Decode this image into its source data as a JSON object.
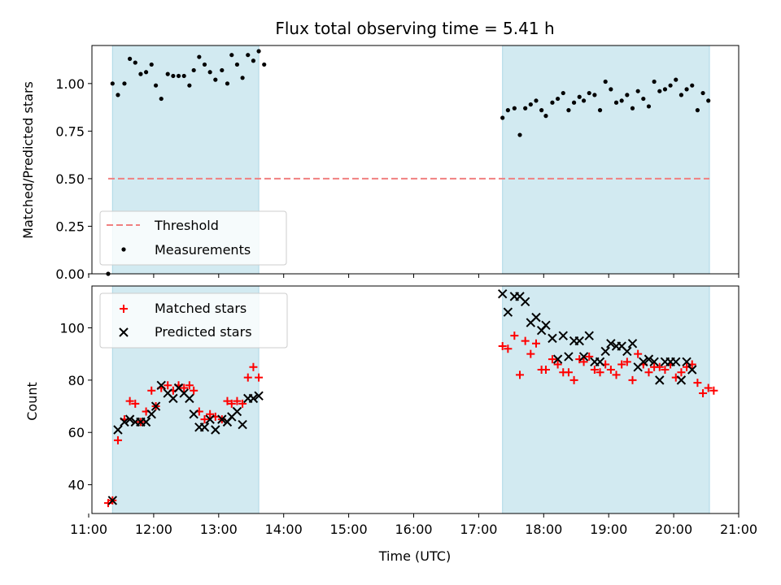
{
  "chart_data": [
    {
      "type": "scatter",
      "title": "Flux total observing time = 5.41 h",
      "xlabel": "",
      "ylabel": "Matched/Predicted stars",
      "xlim": [
        "11:03",
        "21:00"
      ],
      "ylim": [
        0,
        1.2
      ],
      "yticks": [
        "0.00",
        "0.25",
        "0.50",
        "0.75",
        "1.00"
      ],
      "shaded_intervals": [
        [
          "11:22",
          "13:37"
        ],
        [
          "17:22",
          "20:33"
        ]
      ],
      "shade_color": "#add8e6",
      "threshold": {
        "name": "Threshold",
        "value": 0.5,
        "x_range": [
          "11:18",
          "20:33"
        ],
        "color": "#f08080",
        "style": "dashed"
      },
      "legend": {
        "placement": "lower-left",
        "entries": [
          "Threshold",
          "Measurements"
        ]
      },
      "series": [
        {
          "name": "Measurements",
          "marker": "dot",
          "color": "#000000",
          "points": [
            [
              "11:18",
              0.0
            ],
            [
              "11:22",
              1.0
            ],
            [
              "11:27",
              0.94
            ],
            [
              "11:33",
              1.0
            ],
            [
              "11:38",
              1.13
            ],
            [
              "11:43",
              1.11
            ],
            [
              "11:48",
              1.05
            ],
            [
              "11:53",
              1.06
            ],
            [
              "11:58",
              1.1
            ],
            [
              "12:02",
              0.99
            ],
            [
              "12:07",
              0.92
            ],
            [
              "12:13",
              1.05
            ],
            [
              "12:18",
              1.04
            ],
            [
              "12:23",
              1.04
            ],
            [
              "12:28",
              1.04
            ],
            [
              "12:33",
              0.99
            ],
            [
              "12:37",
              1.07
            ],
            [
              "12:42",
              1.14
            ],
            [
              "12:47",
              1.1
            ],
            [
              "12:52",
              1.06
            ],
            [
              "12:57",
              1.02
            ],
            [
              "13:03",
              1.07
            ],
            [
              "13:08",
              1.0
            ],
            [
              "13:12",
              1.15
            ],
            [
              "13:17",
              1.1
            ],
            [
              "13:22",
              1.03
            ],
            [
              "13:27",
              1.15
            ],
            [
              "13:32",
              1.12
            ],
            [
              "13:37",
              1.17
            ],
            [
              "13:42",
              1.1
            ],
            [
              "17:22",
              0.82
            ],
            [
              "17:27",
              0.86
            ],
            [
              "17:33",
              0.87
            ],
            [
              "17:38",
              0.73
            ],
            [
              "17:43",
              0.87
            ],
            [
              "17:48",
              0.89
            ],
            [
              "17:53",
              0.91
            ],
            [
              "17:58",
              0.86
            ],
            [
              "18:02",
              0.83
            ],
            [
              "18:08",
              0.9
            ],
            [
              "18:13",
              0.92
            ],
            [
              "18:18",
              0.95
            ],
            [
              "18:23",
              0.86
            ],
            [
              "18:28",
              0.9
            ],
            [
              "18:33",
              0.93
            ],
            [
              "18:37",
              0.91
            ],
            [
              "18:42",
              0.95
            ],
            [
              "18:47",
              0.94
            ],
            [
              "18:52",
              0.86
            ],
            [
              "18:57",
              1.01
            ],
            [
              "19:02",
              0.97
            ],
            [
              "19:07",
              0.9
            ],
            [
              "19:12",
              0.91
            ],
            [
              "19:17",
              0.94
            ],
            [
              "19:22",
              0.87
            ],
            [
              "19:27",
              0.96
            ],
            [
              "19:32",
              0.92
            ],
            [
              "19:37",
              0.88
            ],
            [
              "19:42",
              1.01
            ],
            [
              "19:47",
              0.96
            ],
            [
              "19:52",
              0.97
            ],
            [
              "19:57",
              0.99
            ],
            [
              "20:02",
              1.02
            ],
            [
              "20:07",
              0.94
            ],
            [
              "20:12",
              0.97
            ],
            [
              "20:17",
              0.99
            ],
            [
              "20:22",
              0.86
            ],
            [
              "20:27",
              0.95
            ],
            [
              "20:32",
              0.91
            ]
          ]
        }
      ]
    },
    {
      "type": "scatter",
      "title": "",
      "xlabel": "Time (UTC)",
      "ylabel": "Count",
      "xlim": [
        "11:03",
        "21:00"
      ],
      "xticks": [
        "11:00",
        "12:00",
        "13:00",
        "14:00",
        "15:00",
        "16:00",
        "17:00",
        "18:00",
        "19:00",
        "20:00",
        "21:00"
      ],
      "ylim": [
        29,
        116
      ],
      "yticks": [
        "40",
        "60",
        "80",
        "100"
      ],
      "shaded_intervals": [
        [
          "11:22",
          "13:37"
        ],
        [
          "17:22",
          "20:33"
        ]
      ],
      "shade_color": "#add8e6",
      "legend": {
        "placement": "upper-left",
        "entries": [
          "Matched stars",
          "Predicted stars"
        ]
      },
      "series": [
        {
          "name": "Matched stars",
          "marker": "plus",
          "color": "#ff0000",
          "points": [
            [
              "11:18",
              33
            ],
            [
              "11:22",
              34
            ],
            [
              "11:27",
              57
            ],
            [
              "11:33",
              65
            ],
            [
              "11:38",
              72
            ],
            [
              "11:43",
              71
            ],
            [
              "11:48",
              64
            ],
            [
              "11:53",
              68
            ],
            [
              "11:58",
              76
            ],
            [
              "12:02",
              70
            ],
            [
              "12:07",
              77
            ],
            [
              "12:13",
              78
            ],
            [
              "12:18",
              76
            ],
            [
              "12:23",
              78
            ],
            [
              "12:28",
              77
            ],
            [
              "12:33",
              78
            ],
            [
              "12:37",
              76
            ],
            [
              "12:42",
              68
            ],
            [
              "12:47",
              65
            ],
            [
              "12:52",
              67
            ],
            [
              "12:57",
              66
            ],
            [
              "13:03",
              65
            ],
            [
              "13:08",
              72
            ],
            [
              "13:12",
              71
            ],
            [
              "13:17",
              72
            ],
            [
              "13:22",
              71
            ],
            [
              "13:27",
              81
            ],
            [
              "13:32",
              85
            ],
            [
              "13:37",
              81
            ],
            [
              "17:22",
              93
            ],
            [
              "17:27",
              92
            ],
            [
              "17:33",
              97
            ],
            [
              "17:38",
              82
            ],
            [
              "17:43",
              95
            ],
            [
              "17:48",
              90
            ],
            [
              "17:53",
              94
            ],
            [
              "17:58",
              84
            ],
            [
              "18:02",
              84
            ],
            [
              "18:08",
              88
            ],
            [
              "18:13",
              86
            ],
            [
              "18:18",
              83
            ],
            [
              "18:23",
              83
            ],
            [
              "18:28",
              80
            ],
            [
              "18:33",
              88
            ],
            [
              "18:37",
              87
            ],
            [
              "18:42",
              89
            ],
            [
              "18:47",
              84
            ],
            [
              "18:52",
              83
            ],
            [
              "18:57",
              86
            ],
            [
              "19:02",
              84
            ],
            [
              "19:07",
              82
            ],
            [
              "19:12",
              86
            ],
            [
              "19:17",
              87
            ],
            [
              "19:22",
              80
            ],
            [
              "19:27",
              90
            ],
            [
              "19:32",
              86
            ],
            [
              "19:37",
              83
            ],
            [
              "19:42",
              85
            ],
            [
              "19:47",
              85
            ],
            [
              "19:52",
              84
            ],
            [
              "19:57",
              86
            ],
            [
              "20:02",
              81
            ],
            [
              "20:07",
              83
            ],
            [
              "20:12",
              85
            ],
            [
              "20:17",
              86
            ],
            [
              "20:22",
              79
            ],
            [
              "20:27",
              75
            ],
            [
              "20:32",
              77
            ],
            [
              "20:37",
              76
            ]
          ]
        },
        {
          "name": "Predicted stars",
          "marker": "x",
          "color": "#000000",
          "points": [
            [
              "11:22",
              34
            ],
            [
              "11:27",
              61
            ],
            [
              "11:33",
              64
            ],
            [
              "11:38",
              65
            ],
            [
              "11:43",
              64
            ],
            [
              "11:48",
              64
            ],
            [
              "11:53",
              64
            ],
            [
              "11:58",
              67
            ],
            [
              "12:02",
              70
            ],
            [
              "12:07",
              78
            ],
            [
              "12:13",
              75
            ],
            [
              "12:18",
              73
            ],
            [
              "12:23",
              77
            ],
            [
              "12:28",
              75
            ],
            [
              "12:33",
              73
            ],
            [
              "12:37",
              67
            ],
            [
              "12:42",
              62
            ],
            [
              "12:47",
              62
            ],
            [
              "12:52",
              65
            ],
            [
              "12:57",
              61
            ],
            [
              "13:03",
              65
            ],
            [
              "13:08",
              64
            ],
            [
              "13:12",
              66
            ],
            [
              "13:17",
              68
            ],
            [
              "13:22",
              63
            ],
            [
              "13:27",
              73
            ],
            [
              "13:32",
              73
            ],
            [
              "13:37",
              74
            ],
            [
              "17:22",
              113
            ],
            [
              "17:27",
              106
            ],
            [
              "17:33",
              112
            ],
            [
              "17:38",
              112
            ],
            [
              "17:43",
              110
            ],
            [
              "17:48",
              102
            ],
            [
              "17:53",
              104
            ],
            [
              "17:58",
              99
            ],
            [
              "18:02",
              101
            ],
            [
              "18:08",
              96
            ],
            [
              "18:13",
              88
            ],
            [
              "18:18",
              97
            ],
            [
              "18:23",
              89
            ],
            [
              "18:28",
              95
            ],
            [
              "18:33",
              95
            ],
            [
              "18:37",
              89
            ],
            [
              "18:42",
              97
            ],
            [
              "18:47",
              87
            ],
            [
              "18:52",
              87
            ],
            [
              "18:57",
              91
            ],
            [
              "19:02",
              94
            ],
            [
              "19:07",
              93
            ],
            [
              "19:12",
              93
            ],
            [
              "19:17",
              91
            ],
            [
              "19:22",
              94
            ],
            [
              "19:27",
              85
            ],
            [
              "19:32",
              87
            ],
            [
              "19:37",
              88
            ],
            [
              "19:42",
              87
            ],
            [
              "19:47",
              80
            ],
            [
              "19:52",
              87
            ],
            [
              "19:57",
              87
            ],
            [
              "20:02",
              87
            ],
            [
              "20:07",
              80
            ],
            [
              "20:12",
              87
            ],
            [
              "20:17",
              84
            ]
          ]
        }
      ]
    }
  ]
}
